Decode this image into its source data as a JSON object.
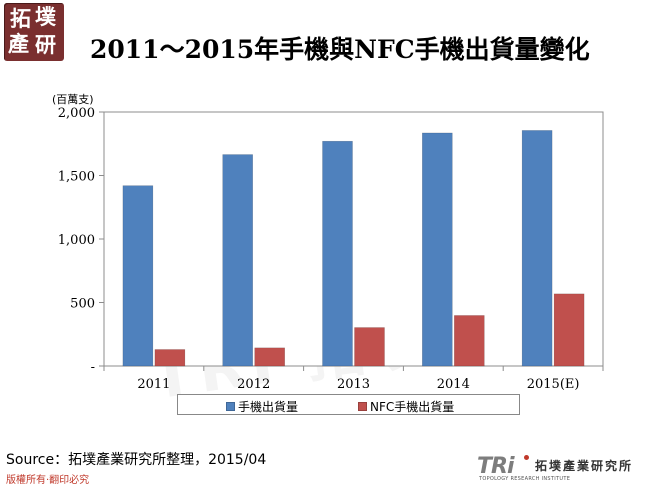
{
  "watermark_text": [
    "拓墣產業研究",
    "TRI 拓墣研究"
  ],
  "logo": {
    "chars": [
      "拓",
      "墣",
      "產",
      "研"
    ]
  },
  "title": "2011～2015年手機與NFC手機出貨量變化",
  "unit_label": "(百萬支)",
  "chart_data": {
    "type": "bar",
    "categories": [
      "2011",
      "2012",
      "2013",
      "2014",
      "2015(E)"
    ],
    "series": [
      {
        "name": "手機出貨量",
        "color": "#4f81bd",
        "values": [
          1420,
          1665,
          1770,
          1835,
          1855
        ]
      },
      {
        "name": "NFC手機出貨量",
        "color": "#c0504d",
        "values": [
          130,
          143,
          303,
          398,
          568
        ]
      }
    ],
    "ylim": [
      0,
      2000
    ],
    "yticks": [
      0,
      500,
      1000,
      1500,
      2000
    ],
    "ytick_labels": [
      "-",
      "500",
      "1,000",
      "1,500",
      "2,000"
    ],
    "grid": false,
    "legend": "bottom"
  },
  "source": "Source：拓墣產業研究所整理，2015/04",
  "copyright": "版權所有‧翻印必究",
  "brand": {
    "mark": "TRi",
    "name_cn": "拓墣產業研究所",
    "name_en": "TOPOLOGY RESEARCH INSTITUTE"
  }
}
